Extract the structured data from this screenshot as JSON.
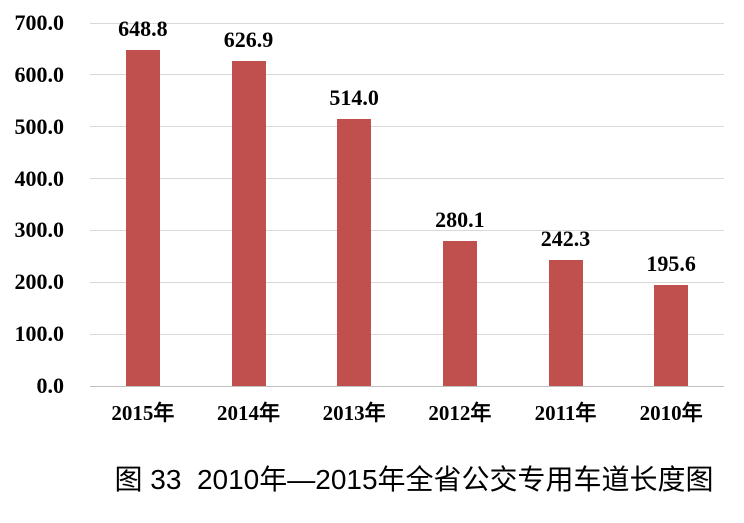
{
  "chart_data": {
    "type": "bar",
    "title": "图 33  2010年—2015年全省公交专用车道长度图",
    "categories": [
      "2015年",
      "2014年",
      "2013年",
      "2012年",
      "2011年",
      "2010年"
    ],
    "values": [
      648.8,
      626.9,
      514.0,
      280.1,
      242.3,
      195.6
    ],
    "data_labels": [
      "648.8",
      "626.9",
      "514.0",
      "280.1",
      "242.3",
      "195.6"
    ],
    "xlabel": "",
    "ylabel": "",
    "ylim": [
      0,
      700
    ],
    "ytick_values": [
      700,
      600,
      500,
      400,
      300,
      200,
      100,
      0
    ],
    "ytick_labels": [
      "700.0",
      "600.0",
      "500.0",
      "400.0",
      "300.0",
      "200.0",
      "100.0",
      "0.0"
    ],
    "grid": true,
    "legend": "none",
    "bar_color": "#C0504D",
    "gridline_color": "#D9D9D9",
    "axis_line_color": "#C0C0C0",
    "label_color": "#000000"
  }
}
